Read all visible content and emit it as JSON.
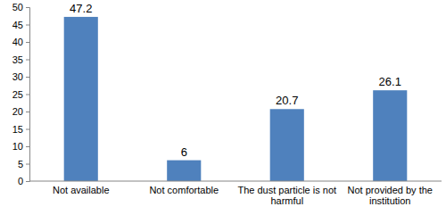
{
  "chart_data": {
    "type": "bar",
    "categories": [
      "Not available",
      "Not comfortable",
      "The dust particle is not harmful",
      "Not provided by the institution"
    ],
    "values": [
      47.2,
      6,
      20.7,
      26.1
    ],
    "color": "#4f81bd",
    "ylim": [
      0,
      50
    ],
    "yticks": [
      0,
      5,
      10,
      15,
      20,
      25,
      30,
      35,
      40,
      45,
      50
    ],
    "grid": false,
    "data_labels": true
  }
}
